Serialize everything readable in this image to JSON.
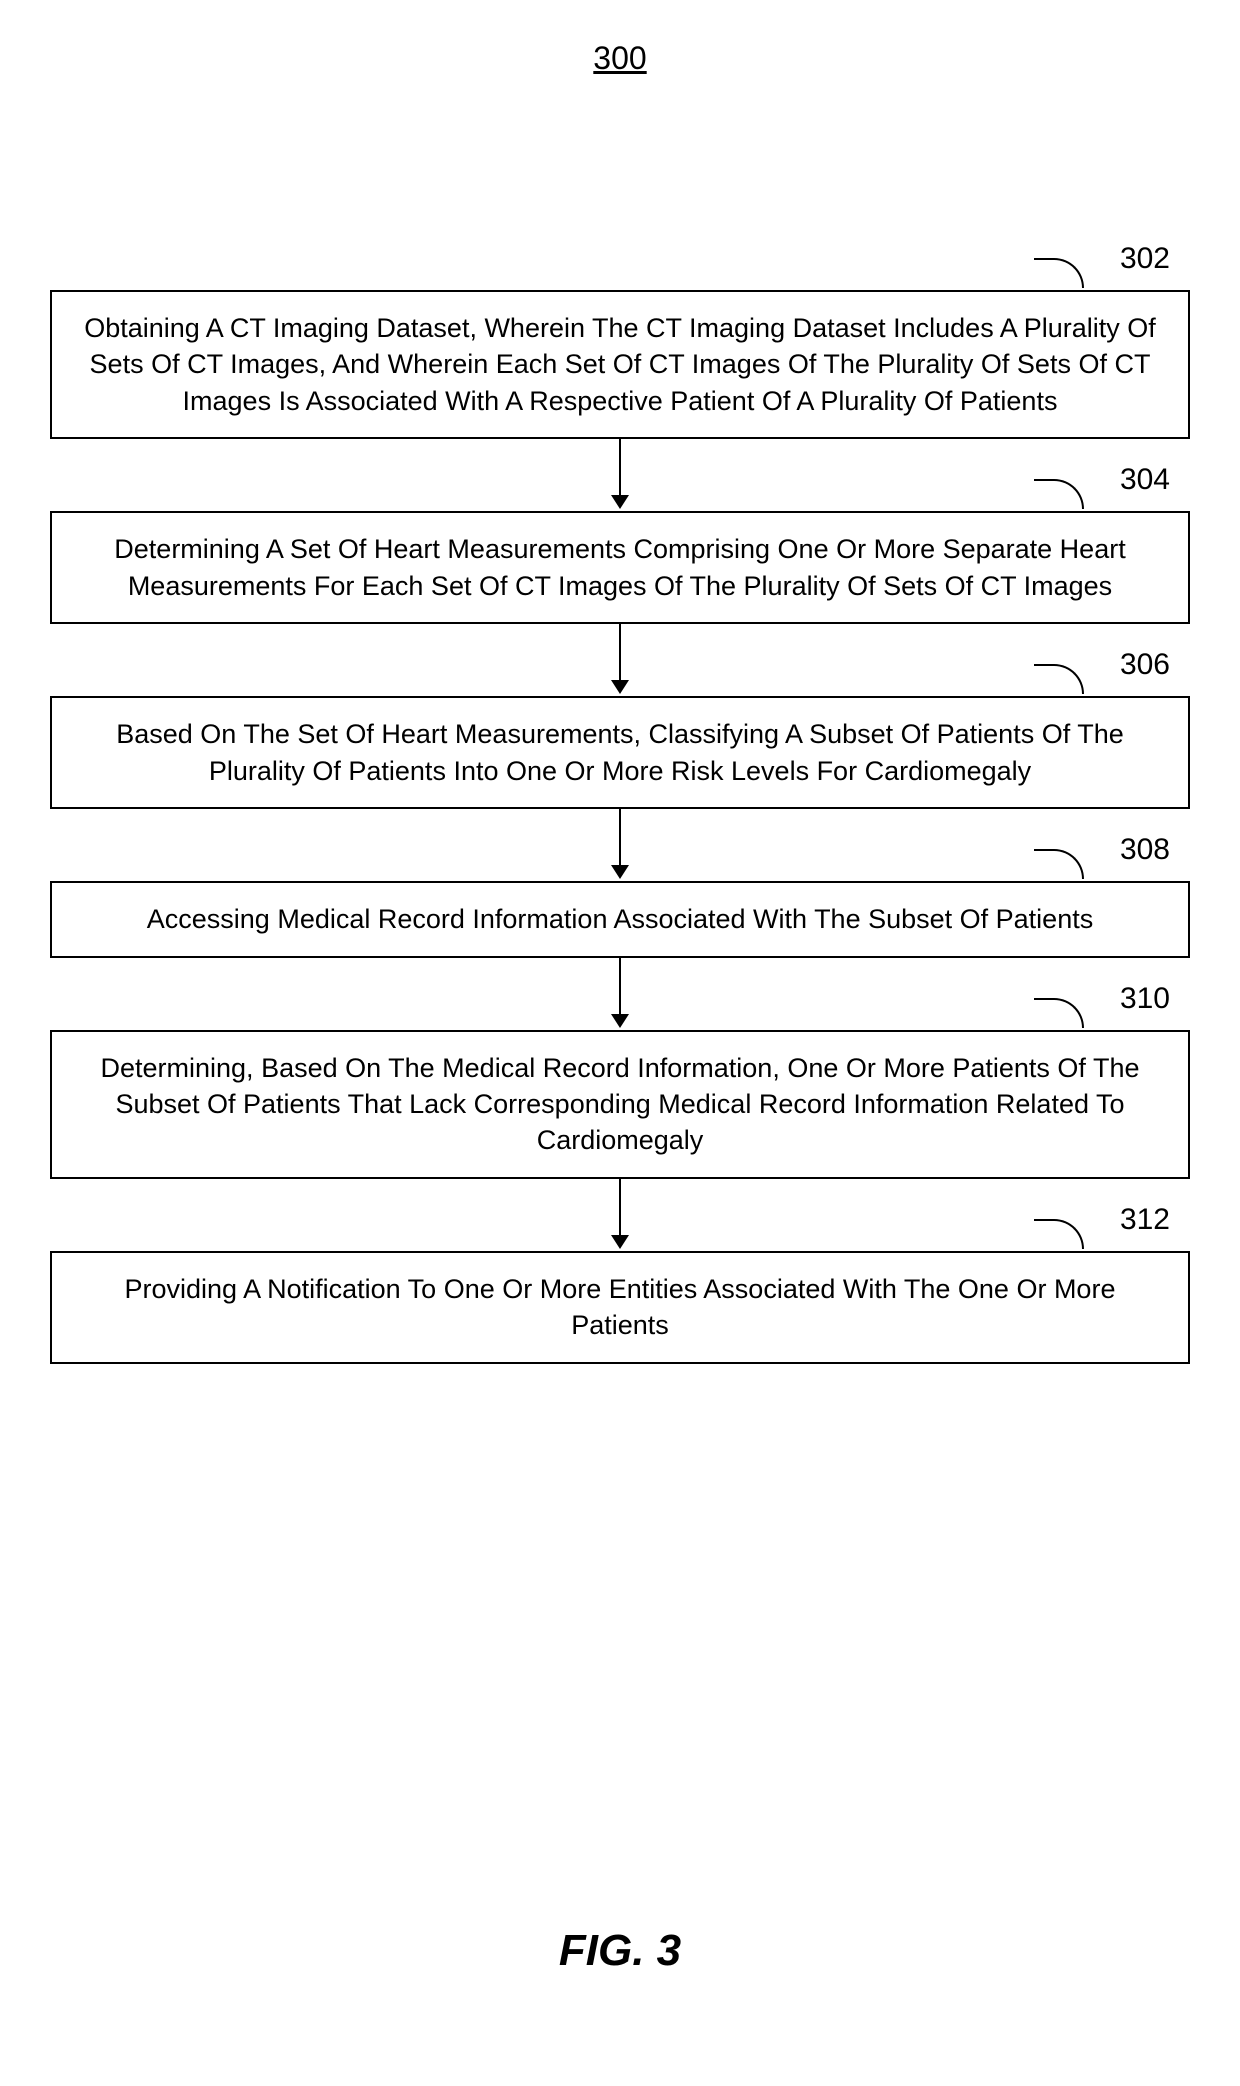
{
  "figure": {
    "number_label": "300",
    "caption": "FIG. 3"
  },
  "flowchart": {
    "type": "flowchart",
    "background_color": "#ffffff",
    "box_border_color": "#000000",
    "box_border_width": 2,
    "text_color": "#000000",
    "text_fontsize": 27,
    "callout_fontsize": 30,
    "arrow_color": "#000000",
    "steps": [
      {
        "ref": "302",
        "text": "Obtaining A CT Imaging Dataset, Wherein The CT Imaging Dataset Includes A Plurality Of Sets Of CT Images, And Wherein Each Set Of CT Images Of The Plurality Of Sets Of CT Images Is Associated With A Respective Patient Of A Plurality Of Patients"
      },
      {
        "ref": "304",
        "text": "Determining A Set Of Heart Measurements Comprising One Or More Separate Heart Measurements For Each Set Of CT Images Of The Plurality Of Sets Of CT Images"
      },
      {
        "ref": "306",
        "text": "Based On The Set Of Heart Measurements, Classifying A Subset Of Patients Of The Plurality Of Patients Into One Or More Risk Levels For Cardiomegaly"
      },
      {
        "ref": "308",
        "text": "Accessing Medical Record Information Associated With The Subset Of Patients"
      },
      {
        "ref": "310",
        "text": "Determining, Based On The Medical Record Information, One Or More Patients Of The Subset Of Patients That Lack Corresponding Medical Record Information Related To Cardiomegaly"
      },
      {
        "ref": "312",
        "text": "Providing A Notification To One Or More Entities Associated With The One Or More Patients"
      }
    ]
  }
}
